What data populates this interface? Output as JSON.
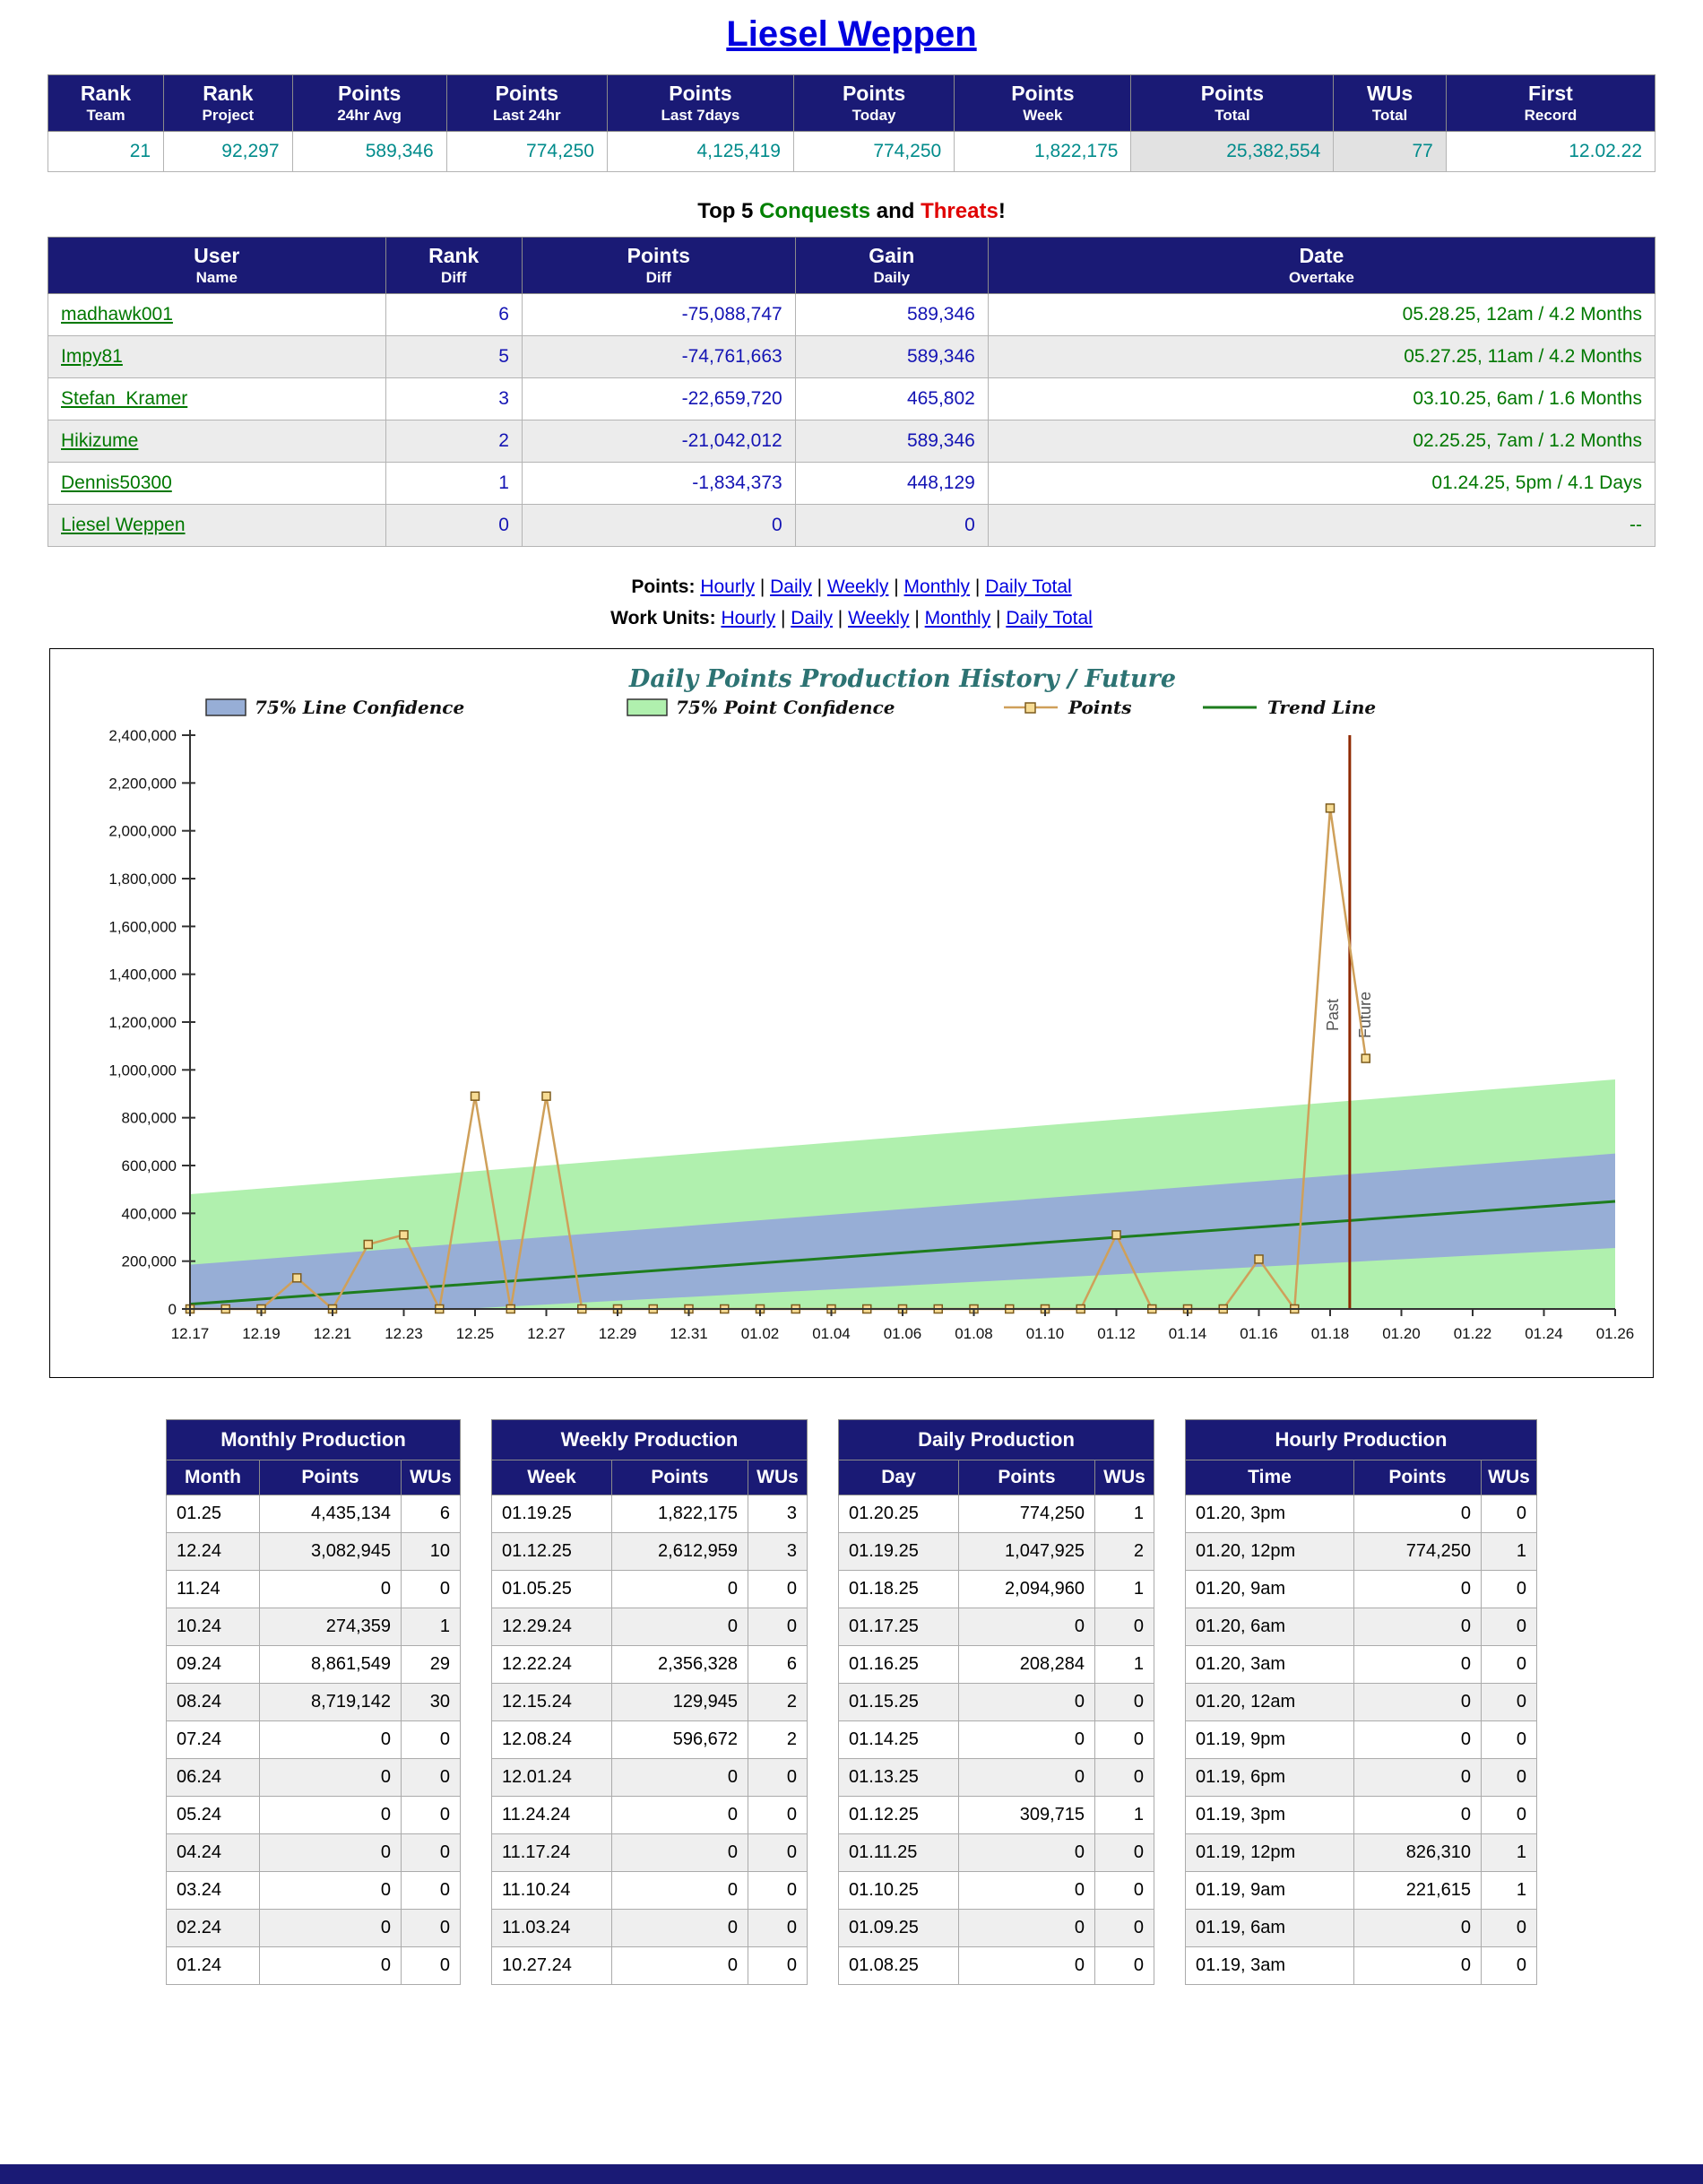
{
  "page_title": "Liesel Weppen",
  "colors": {
    "header_bg": "#1a1a75",
    "value_teal": "#008b8b",
    "link_blue": "#0000e0",
    "link_green": "#007800",
    "number_blue": "#1414b4",
    "heading_green": "#008000",
    "heading_red": "#e00000",
    "line_band": "#97aed6",
    "point_band": "#b0f0ae",
    "points": "#cfa05a",
    "marker_fill": "#f7dc94",
    "marker_stroke": "#7d5c1e",
    "trend": "#1e7d1e",
    "divider": "#8f2a00",
    "chart_title": "#2d7373"
  },
  "summary": {
    "columns": [
      {
        "label": "Rank",
        "sub": "Team",
        "value": "21",
        "gray": false
      },
      {
        "label": "Rank",
        "sub": "Project",
        "value": "92,297",
        "gray": false
      },
      {
        "label": "Points",
        "sub": "24hr Avg",
        "value": "589,346",
        "gray": false
      },
      {
        "label": "Points",
        "sub": "Last 24hr",
        "value": "774,250",
        "gray": false
      },
      {
        "label": "Points",
        "sub": "Last 7days",
        "value": "4,125,419",
        "gray": false
      },
      {
        "label": "Points",
        "sub": "Today",
        "value": "774,250",
        "gray": false
      },
      {
        "label": "Points",
        "sub": "Week",
        "value": "1,822,175",
        "gray": false
      },
      {
        "label": "Points",
        "sub": "Total",
        "value": "25,382,554",
        "gray": true
      },
      {
        "label": "WUs",
        "sub": "Total",
        "value": "77",
        "gray": true
      },
      {
        "label": "First",
        "sub": "Record",
        "value": "12.02.22",
        "gray": false
      }
    ]
  },
  "conquests": {
    "heading": [
      {
        "text": "Top 5 ",
        "color": "#000000"
      },
      {
        "text": "Conquests",
        "color": "#008000"
      },
      {
        "text": " and ",
        "color": "#000000"
      },
      {
        "text": "Threats",
        "color": "#e00000"
      },
      {
        "text": "!",
        "color": "#000000"
      }
    ],
    "columns": [
      {
        "label": "User",
        "sub": "Name"
      },
      {
        "label": "Rank",
        "sub": "Diff"
      },
      {
        "label": "Points",
        "sub": "Diff"
      },
      {
        "label": "Gain",
        "sub": "Daily"
      },
      {
        "label": "Date",
        "sub": "Overtake"
      }
    ],
    "rows": [
      {
        "user": "madhawk001",
        "rank_diff": "6",
        "points_diff": "-75,088,747",
        "gain_daily": "589,346",
        "date_overtake": "05.28.25, 12am / 4.2 Months"
      },
      {
        "user": "Impy81",
        "rank_diff": "5",
        "points_diff": "-74,761,663",
        "gain_daily": "589,346",
        "date_overtake": "05.27.25, 11am / 4.2 Months"
      },
      {
        "user": "Stefan_Kramer",
        "rank_diff": "3",
        "points_diff": "-22,659,720",
        "gain_daily": "465,802",
        "date_overtake": "03.10.25, 6am / 1.6 Months"
      },
      {
        "user": "Hikizume",
        "rank_diff": "2",
        "points_diff": "-21,042,012",
        "gain_daily": "589,346",
        "date_overtake": "02.25.25, 7am / 1.2 Months"
      },
      {
        "user": "Dennis50300",
        "rank_diff": "1",
        "points_diff": "-1,834,373",
        "gain_daily": "448,129",
        "date_overtake": "01.24.25, 5pm / 4.1 Days"
      },
      {
        "user": "Liesel Weppen",
        "rank_diff": "0",
        "points_diff": "0",
        "gain_daily": "0",
        "date_overtake": "--"
      }
    ]
  },
  "nav_links": {
    "separator": "|",
    "rows": [
      {
        "label": "Points:",
        "links": [
          "Hourly",
          "Daily",
          "Weekly",
          "Monthly",
          "Daily Total"
        ]
      },
      {
        "label": "Work Units:",
        "links": [
          "Hourly",
          "Daily",
          "Weekly",
          "Monthly",
          "Daily Total"
        ]
      }
    ]
  },
  "chart_data": {
    "type": "line",
    "title": "Daily Points Production History / Future",
    "legend": [
      "75% Line Confidence",
      "75% Point Confidence",
      "Points",
      "Trend Line"
    ],
    "ylim": [
      0,
      2400000
    ],
    "ytick_step": 200000,
    "grid": false,
    "x_labels": [
      "12.17",
      "12.19",
      "12.21",
      "12.23",
      "12.25",
      "12.27",
      "12.29",
      "12.31",
      "01.02",
      "01.04",
      "01.06",
      "01.08",
      "01.10",
      "01.12",
      "01.14",
      "01.16",
      "01.18",
      "01.20",
      "01.22",
      "01.24",
      "01.26"
    ],
    "x_index_max": 40,
    "points": {
      "first_day": "12.17",
      "values": [
        0,
        0,
        0,
        130000,
        0,
        270000,
        310000,
        0,
        890000,
        0,
        890000,
        0,
        0,
        0,
        0,
        0,
        0,
        0,
        0,
        0,
        0,
        0,
        0,
        0,
        0,
        0,
        309715,
        0,
        0,
        0,
        208284,
        0,
        2094960,
        1047925
      ]
    },
    "trend": {
      "x": [
        0,
        40
      ],
      "values": [
        20000,
        450000
      ]
    },
    "line_confidence_band": {
      "x": [
        0,
        40
      ],
      "top": [
        185000,
        650000
      ],
      "bottom": [
        -60000,
        255000
      ]
    },
    "point_confidence_band": {
      "x": [
        0,
        40
      ],
      "top": [
        480000,
        960000
      ],
      "bottom": [
        -300000,
        -80000
      ]
    },
    "divider": {
      "x": 32.55,
      "labels": [
        "Past",
        "Future"
      ]
    }
  },
  "production": [
    {
      "title": "Monthly Production",
      "columns": [
        "Month",
        "Points",
        "WUs"
      ],
      "rows": [
        [
          "01.25",
          "4,435,134",
          "6"
        ],
        [
          "12.24",
          "3,082,945",
          "10"
        ],
        [
          "11.24",
          "0",
          "0"
        ],
        [
          "10.24",
          "274,359",
          "1"
        ],
        [
          "09.24",
          "8,861,549",
          "29"
        ],
        [
          "08.24",
          "8,719,142",
          "30"
        ],
        [
          "07.24",
          "0",
          "0"
        ],
        [
          "06.24",
          "0",
          "0"
        ],
        [
          "05.24",
          "0",
          "0"
        ],
        [
          "04.24",
          "0",
          "0"
        ],
        [
          "03.24",
          "0",
          "0"
        ],
        [
          "02.24",
          "0",
          "0"
        ],
        [
          "01.24",
          "0",
          "0"
        ]
      ]
    },
    {
      "title": "Weekly Production",
      "columns": [
        "Week",
        "Points",
        "WUs"
      ],
      "rows": [
        [
          "01.19.25",
          "1,822,175",
          "3"
        ],
        [
          "01.12.25",
          "2,612,959",
          "3"
        ],
        [
          "01.05.25",
          "0",
          "0"
        ],
        [
          "12.29.24",
          "0",
          "0"
        ],
        [
          "12.22.24",
          "2,356,328",
          "6"
        ],
        [
          "12.15.24",
          "129,945",
          "2"
        ],
        [
          "12.08.24",
          "596,672",
          "2"
        ],
        [
          "12.01.24",
          "0",
          "0"
        ],
        [
          "11.24.24",
          "0",
          "0"
        ],
        [
          "11.17.24",
          "0",
          "0"
        ],
        [
          "11.10.24",
          "0",
          "0"
        ],
        [
          "11.03.24",
          "0",
          "0"
        ],
        [
          "10.27.24",
          "0",
          "0"
        ]
      ]
    },
    {
      "title": "Daily Production",
      "columns": [
        "Day",
        "Points",
        "WUs"
      ],
      "rows": [
        [
          "01.20.25",
          "774,250",
          "1"
        ],
        [
          "01.19.25",
          "1,047,925",
          "2"
        ],
        [
          "01.18.25",
          "2,094,960",
          "1"
        ],
        [
          "01.17.25",
          "0",
          "0"
        ],
        [
          "01.16.25",
          "208,284",
          "1"
        ],
        [
          "01.15.25",
          "0",
          "0"
        ],
        [
          "01.14.25",
          "0",
          "0"
        ],
        [
          "01.13.25",
          "0",
          "0"
        ],
        [
          "01.12.25",
          "309,715",
          "1"
        ],
        [
          "01.11.25",
          "0",
          "0"
        ],
        [
          "01.10.25",
          "0",
          "0"
        ],
        [
          "01.09.25",
          "0",
          "0"
        ],
        [
          "01.08.25",
          "0",
          "0"
        ]
      ]
    },
    {
      "title": "Hourly Production",
      "columns": [
        "Time",
        "Points",
        "WUs"
      ],
      "rows": [
        [
          "01.20, 3pm",
          "0",
          "0"
        ],
        [
          "01.20, 12pm",
          "774,250",
          "1"
        ],
        [
          "01.20, 9am",
          "0",
          "0"
        ],
        [
          "01.20, 6am",
          "0",
          "0"
        ],
        [
          "01.20, 3am",
          "0",
          "0"
        ],
        [
          "01.20, 12am",
          "0",
          "0"
        ],
        [
          "01.19, 9pm",
          "0",
          "0"
        ],
        [
          "01.19, 6pm",
          "0",
          "0"
        ],
        [
          "01.19, 3pm",
          "0",
          "0"
        ],
        [
          "01.19, 12pm",
          "826,310",
          "1"
        ],
        [
          "01.19, 9am",
          "221,615",
          "1"
        ],
        [
          "01.19, 6am",
          "0",
          "0"
        ],
        [
          "01.19, 3am",
          "0",
          "0"
        ]
      ]
    }
  ]
}
